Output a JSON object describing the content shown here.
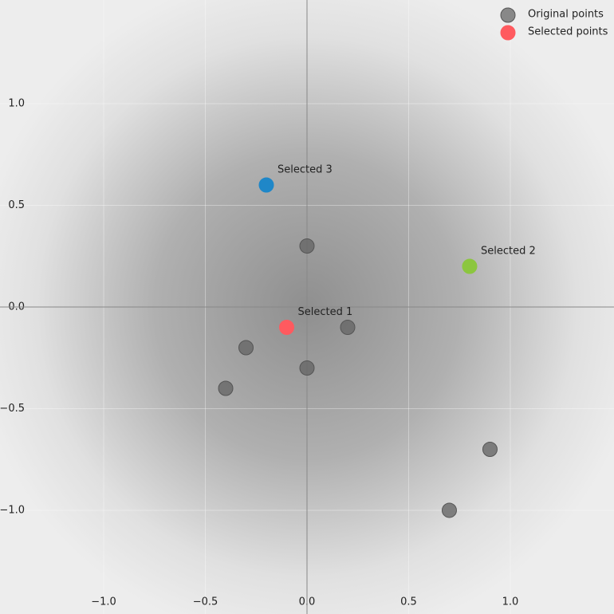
{
  "chart_data": {
    "type": "scatter",
    "xlim": [
      -1.51,
      1.51
    ],
    "ylim": [
      -1.51,
      1.51
    ],
    "xticks": [
      {
        "value": -1.0,
        "label": "−1.0"
      },
      {
        "value": -0.5,
        "label": "−0.5"
      },
      {
        "value": 0.0,
        "label": "0.0"
      },
      {
        "value": 0.5,
        "label": "0.5"
      },
      {
        "value": 1.0,
        "label": "1.0"
      }
    ],
    "yticks": [
      {
        "value": -1.0,
        "label": "−1.0"
      },
      {
        "value": -0.5,
        "label": "−0.5"
      },
      {
        "value": 0.0,
        "label": "0.0"
      },
      {
        "value": 0.5,
        "label": "0.5"
      },
      {
        "value": 1.0,
        "label": "1.0"
      }
    ],
    "grid": true,
    "legend": "upper right",
    "series": [
      {
        "name": "Original points",
        "color": "#666666",
        "x": [
          0.0,
          0.2,
          -0.3,
          0.0,
          -0.4,
          0.9,
          0.7
        ],
        "values": [
          0.3,
          -0.1,
          -0.2,
          -0.3,
          -0.4,
          -0.7,
          -1.0
        ]
      },
      {
        "name": "Selected points",
        "color": "#ff5a5f",
        "colors": [
          "#ff5a5f",
          "#8cc63f",
          "#1f87c8"
        ],
        "labels": [
          "Selected 1",
          "Selected 2",
          "Selected 3"
        ],
        "x": [
          -0.1,
          0.8,
          -0.2
        ],
        "values": [
          -0.1,
          0.2,
          0.6
        ]
      }
    ]
  }
}
